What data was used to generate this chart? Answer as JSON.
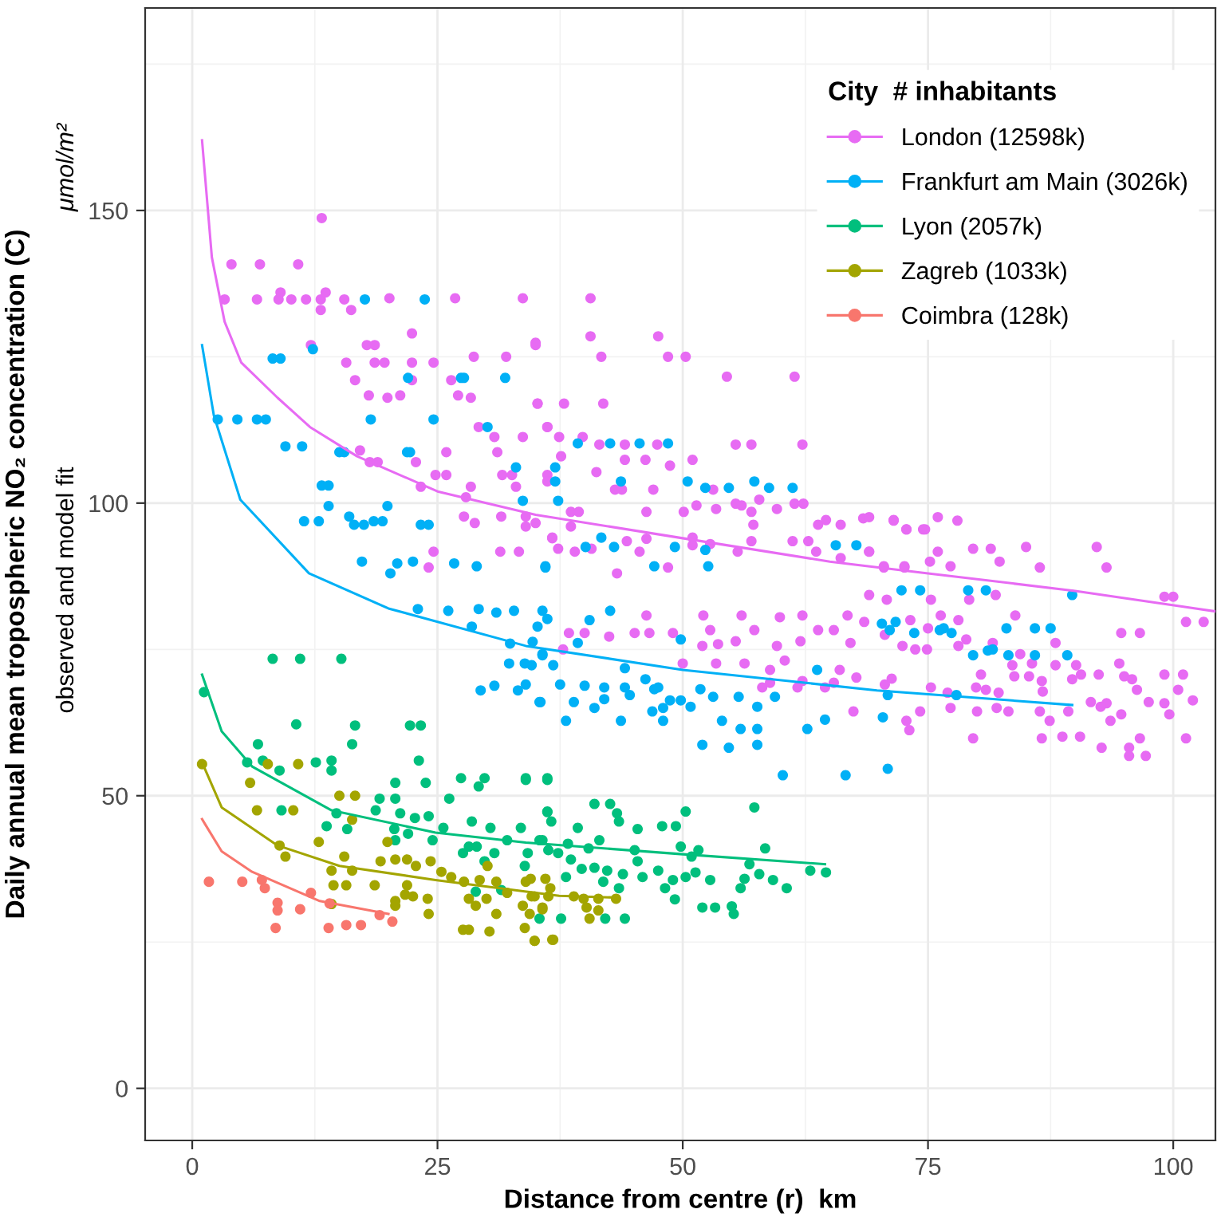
{
  "chart_data": {
    "type": "scatter",
    "xlabel": "Distance from centre (r)  km",
    "ylabel": "Daily annual mean tropospheric NO₂ concentration (C)",
    "annotations": [
      "μmol/m²",
      "observed and model fit"
    ],
    "legend_title": "City  # inhabitants",
    "xlim": [
      -4.8,
      104.3
    ],
    "ylim": [
      -8.9,
      184.6
    ],
    "xticks": [
      0,
      25,
      50,
      75,
      100
    ],
    "yticks": [
      0,
      50,
      100,
      150
    ],
    "grid": true,
    "legend": "top right",
    "marker": "circle",
    "series": [
      {
        "name": "London (12598k)",
        "color": "#e76bf3",
        "x": [
          13.2,
          4.0,
          6.9,
          10.8,
          3.3,
          6.6,
          8.8,
          10.1,
          11.6,
          13.1,
          15.5,
          20.1,
          26.8,
          33.7,
          9,
          13.6,
          13.1,
          16.2,
          22.4,
          12.1,
          17.8,
          18.6,
          35,
          15.7,
          18.6,
          19.6,
          22.4,
          24.6,
          28.7,
          32,
          16.6,
          22.4,
          26.4,
          18,
          19.9,
          21.2,
          27.1,
          28.4,
          35.2,
          29.2,
          30.8,
          33.7,
          36.2,
          17.1,
          25.9,
          31.1,
          18.1,
          18.9,
          22.8,
          24.8,
          25.9,
          31.6,
          32.6,
          36.2,
          23.3,
          28.4,
          33,
          27.9,
          27.7,
          28.8,
          31.5,
          34,
          34,
          35,
          36.7,
          24.6,
          31.4,
          33.3,
          24.1,
          40.6,
          40.6,
          47.5,
          35,
          41.7,
          48.5,
          50.3,
          54.5,
          61.4,
          35.2,
          37.9,
          41.9,
          36.2,
          37.4,
          39.8,
          41.5,
          44.1,
          47.4,
          55.4,
          57,
          62.2,
          37.6,
          44.1,
          46.2,
          51,
          48.7,
          41.2,
          36.2,
          43.1,
          43.8,
          47,
          53.1,
          57.8,
          55.4,
          56,
          61.4,
          62.3,
          51.4,
          50.1,
          38.6,
          39.4,
          46.3,
          53.4,
          57,
          59.6,
          63.8,
          64.6,
          66.1,
          68.4,
          71.5,
          72.8,
          74.5,
          57.2,
          36.7,
          37.3,
          38.6,
          39,
          40.7,
          44.3,
          45.6,
          46.3,
          51,
          51,
          52.8,
          55.6,
          57,
          61.2,
          62.8,
          63.6,
          66.1,
          69,
          70.5,
          72.6,
          76,
          43.3,
          48.5,
          69,
          71.5,
          72.8,
          74.7,
          76,
          78,
          69,
          79.6,
          81.4,
          85,
          92.2,
          93.2,
          75.2,
          77.3,
          82.3,
          86.4,
          70.5,
          72.6,
          99.1,
          100,
          69,
          70.8,
          75.3,
          79.2,
          81.9,
          68.5,
          73.2,
          76.3,
          78.1,
          83.9,
          101.3,
          103.1,
          70.6,
          72.4,
          75,
          73.7,
          74.9,
          78.1,
          78.9,
          81.6,
          94.7,
          96.6,
          88,
          84.4,
          83.6,
          85.6,
          88,
          90.1,
          94.5,
          80.4,
          83.8,
          85.3,
          86.6,
          89.7,
          90.6,
          92.4,
          95,
          95.8,
          99.1,
          101,
          70.6,
          71.3,
          75.3,
          79.9,
          80.9,
          82.2,
          86.7,
          96.3,
          100.5,
          77,
          91.6,
          93.2,
          97.5,
          102,
          74.2,
          77.3,
          80,
          82,
          83.2,
          86.4,
          89.3,
          92.6,
          99.1,
          94.7,
          99.6,
          72.8,
          87.4,
          93.6,
          73.1,
          79.6,
          86.6,
          88.7,
          90.5,
          96.6,
          101.3,
          92.7,
          95.5,
          95.5,
          97.2,
          46.3,
          38.4,
          40,
          42.5,
          45.1,
          46.6,
          49,
          52.1,
          52.8,
          56,
          57.3,
          59.9,
          62.2,
          63.8,
          66.8,
          52,
          53.6,
          55.4,
          59.6,
          62,
          65.4,
          67.1,
          50,
          53.4,
          56.3,
          60.4,
          58.9,
          58.1,
          58.9,
          61.7,
          62.2,
          65.4,
          64.5,
          66,
          67.7,
          67.4,
          37.8
        ],
        "values": [
          148.7,
          140.8,
          140.8,
          140.8,
          134.8,
          134.8,
          134.8,
          134.8,
          134.8,
          134.8,
          134.8,
          135,
          135,
          135,
          136,
          136,
          133,
          133,
          129,
          127,
          127,
          127,
          127.4,
          124,
          124,
          124,
          124,
          124,
          125,
          125,
          121,
          121,
          121,
          118.4,
          118,
          118.4,
          118.4,
          118,
          117,
          113,
          111.3,
          111.3,
          113,
          109,
          108.7,
          108.7,
          107,
          107,
          107,
          104.8,
          104.8,
          104.8,
          104.8,
          104.8,
          102.8,
          102.8,
          102.8,
          101,
          97.7,
          96.6,
          97.7,
          97.7,
          96,
          96.6,
          94,
          91.7,
          91.7,
          91.7,
          89,
          135,
          128.5,
          128.5,
          127,
          125,
          125,
          125,
          121.6,
          121.6,
          117,
          117,
          117,
          113,
          111.3,
          111.3,
          110,
          110,
          110,
          110,
          110,
          110,
          108,
          107.4,
          107.4,
          107.4,
          106.4,
          105.3,
          103.7,
          102.3,
          102.3,
          102.3,
          102.3,
          100.6,
          99.9,
          99.6,
          99.9,
          99.9,
          99.6,
          98.5,
          98.5,
          98.5,
          98.5,
          99,
          98.5,
          99,
          96.3,
          97.1,
          96.3,
          97.4,
          97.1,
          95.5,
          95.5,
          96.3,
          94.1,
          92.2,
          96,
          91.7,
          92.2,
          93.5,
          91.7,
          93.9,
          94.1,
          92.8,
          93,
          91.7,
          93.5,
          93.5,
          93.5,
          91.7,
          90.6,
          91.7,
          89,
          89,
          91.7,
          88,
          89,
          97.6,
          97,
          95.5,
          95.5,
          97.6,
          97,
          91.7,
          92.2,
          92.2,
          92.5,
          92.5,
          89,
          90,
          89.2,
          90,
          89,
          89.2,
          89.2,
          84,
          84,
          84.3,
          83.5,
          83.5,
          83.5,
          84.3,
          79.7,
          80,
          80.8,
          80,
          80.8,
          79.7,
          79.7,
          77.5,
          75.6,
          78.6,
          75,
          75,
          75.6,
          76.7,
          76.1,
          77.8,
          77.8,
          76.1,
          74.2,
          72.3,
          72.6,
          72.3,
          72.3,
          72.6,
          70.7,
          70.4,
          70.4,
          69.6,
          69.9,
          70.7,
          70.7,
          70.4,
          69.9,
          70.7,
          70.7,
          69,
          70,
          68.5,
          68.5,
          68.1,
          67.6,
          67.8,
          68.1,
          68.1,
          67.6,
          66,
          65.8,
          66,
          66.3,
          64.4,
          65,
          64.4,
          65,
          64.4,
          64.4,
          64.4,
          65.2,
          65.8,
          63.9,
          63.9,
          62.8,
          62.8,
          62.8,
          61.2,
          59.8,
          59.8,
          60.1,
          60.1,
          59.8,
          59.8,
          58.2,
          58.2,
          56.8,
          56.8,
          80.8,
          77.8,
          77.8,
          77.2,
          77.8,
          77.8,
          77.8,
          80.8,
          78.3,
          80.8,
          78.3,
          80.5,
          80.8,
          78.3,
          80.8,
          75.6,
          75.9,
          76.4,
          75.6,
          76.4,
          78.3,
          76.1,
          72.6,
          72.6,
          72.6,
          73.1,
          71.5,
          68.5,
          69.3,
          68.5,
          69.6,
          69.3,
          68.5,
          71.5,
          70.2,
          64.4,
          75
        ]
      },
      {
        "name": "Frankfurt am Main (3026k)",
        "color": "#00b0f6",
        "x": [
          17.6,
          23.7,
          8.2,
          9,
          12.3,
          22,
          27.4,
          27.7,
          31.9,
          2.6,
          4.6,
          6.6,
          7.5,
          18.2,
          24.6,
          30.1,
          9.5,
          11.2,
          15,
          15.5,
          21.9,
          22.2,
          33,
          37,
          37,
          13.2,
          13.9,
          33.7,
          13.9,
          19.9,
          11.4,
          12.9,
          16,
          16.5,
          17.5,
          18.5,
          19.4,
          23.3,
          24.1,
          17.3,
          20.9,
          22.5,
          26.7,
          29,
          36,
          20.2,
          39.3,
          42.6,
          45.6,
          48.5,
          37.3,
          43.7,
          50.5,
          52.3,
          54.7,
          57.3,
          58.8,
          61.2,
          41.7,
          40.1,
          43,
          49.2,
          52.3,
          36,
          47.1,
          52.6,
          65.6,
          67.7,
          72.3,
          74.2,
          79.1,
          80.9,
          89.7,
          70.3,
          71.7,
          71.1,
          73.6,
          76.2,
          76.6,
          77.4,
          83,
          85.9,
          87.5,
          79.6,
          81.1,
          81.6,
          83.2,
          85.9,
          89.2,
          70.9,
          77.9,
          70.4,
          70.9,
          35.7,
          36.2,
          40.5,
          42.6,
          39.3,
          49.8,
          34.6,
          36.8,
          35.7,
          34,
          37.5,
          40,
          42,
          44.1,
          46.2,
          47.5,
          44.1,
          35.5,
          38.9,
          41,
          42,
          44.6,
          47.1,
          46.9,
          48,
          48.7,
          49.8,
          50.8,
          51.8,
          53.1,
          55.7,
          57.6,
          59.4,
          63.7,
          64.5,
          62.7,
          38.1,
          43.7,
          48,
          54,
          55.9,
          57.6,
          57.6,
          52,
          54.7,
          60.2,
          66.6,
          23,
          26.1,
          29.2,
          31,
          32.8,
          28.5,
          35.2,
          32.4,
          34.7,
          32.3,
          33.9,
          29.4,
          30.8,
          33.2,
          35.4,
          35.7
        ],
        "values": [
          134.8,
          134.8,
          124.7,
          124.7,
          126.3,
          121.4,
          121.4,
          121.4,
          121.4,
          114.3,
          114.3,
          114.3,
          114.3,
          114.3,
          114.3,
          113,
          109.7,
          109.7,
          108.7,
          108.7,
          108.7,
          108.7,
          106.1,
          106.1,
          103.7,
          103,
          103,
          100.4,
          99.5,
          99.5,
          96.9,
          96.9,
          97.7,
          96.3,
          96.3,
          96.9,
          96.9,
          96.3,
          96.3,
          90,
          89.7,
          90,
          89.7,
          89.2,
          89.2,
          88,
          110.2,
          110.2,
          110.2,
          110.2,
          100.4,
          103.7,
          103.7,
          102.6,
          102.6,
          103.7,
          102.6,
          102.6,
          94.1,
          92.5,
          92.5,
          92.5,
          92,
          89,
          89.2,
          89.2,
          92.8,
          92.8,
          85.1,
          85.1,
          85.1,
          85.1,
          84.3,
          79.4,
          79.7,
          78.3,
          77.8,
          78.3,
          78.6,
          77.8,
          78.6,
          78.6,
          78.6,
          74,
          74.8,
          75,
          74,
          74,
          74,
          67.2,
          67.2,
          63.4,
          54.6,
          81.6,
          80.2,
          80,
          81.6,
          76.1,
          76.7,
          72.3,
          72.3,
          74.2,
          69,
          69,
          68.8,
          68.5,
          71.8,
          69.9,
          68.5,
          68.5,
          66,
          66,
          65,
          66.5,
          67.2,
          68.2,
          64.4,
          65,
          66.3,
          66.3,
          65.2,
          68.2,
          66.9,
          66.9,
          65.2,
          66.9,
          71.5,
          63,
          61.4,
          62.8,
          62.8,
          62.8,
          62.8,
          61.4,
          61.4,
          58.7,
          58.7,
          58.2,
          53.5,
          53.5,
          81.9,
          81.6,
          81.9,
          81.3,
          81.6,
          78.9,
          78.9,
          76,
          76.3,
          72.6,
          72.6,
          68,
          68.8,
          68,
          66,
          74
        ]
      },
      {
        "name": "Lyon (2057k)",
        "color": "#00bf7d",
        "x": [
          8.2,
          11,
          15.2,
          1.2,
          10.6,
          16.6,
          22.2,
          23.3,
          6.7,
          16.3,
          23.1,
          5.6,
          7.2,
          8.9,
          12.6,
          14.2,
          14.2,
          20.7,
          23.8,
          27.4,
          29.2,
          29.8,
          34,
          36.2,
          9.1,
          19.1,
          20.7,
          26.2,
          14.7,
          18.7,
          21.2,
          22.7,
          24.1,
          15.8,
          13.7,
          20.6,
          22,
          25.6,
          28.5,
          30.4,
          33.5,
          36.2,
          36.6,
          20.7,
          24.5,
          28.2,
          29,
          30.8,
          32.1,
          35.4,
          27.6,
          29.8,
          34.2,
          33.9,
          36.3,
          35.4,
          31.5,
          28.9,
          34,
          36.2,
          41,
          42.6,
          36.2,
          43.3,
          50.3,
          57.3,
          39.3,
          43.5,
          45.4,
          47.9,
          49.3,
          35.7,
          38.3,
          40.4,
          41.5,
          45.1,
          49.8,
          51.6,
          58.4,
          37.3,
          38.6,
          45.4,
          50.9,
          56.8,
          39.7,
          41,
          42.3,
          43.9,
          45.9,
          47.5,
          49,
          50.3,
          51.3,
          52.8,
          56.3,
          57.8,
          59.2,
          60.6,
          63,
          64.6,
          38.1,
          41.9,
          43.5,
          48.2,
          55.9,
          49.2,
          52,
          53.3,
          55,
          55.2,
          37.6,
          42.1,
          44.1
        ],
        "values": [
          73.4,
          73.4,
          73.4,
          67.7,
          62.2,
          62,
          62,
          62,
          58.8,
          58.8,
          56,
          55.7,
          56,
          54.3,
          55.7,
          56,
          54.3,
          52.2,
          52.2,
          53,
          51.6,
          53,
          53,
          53,
          47.5,
          49.5,
          49.5,
          49.5,
          47,
          47.5,
          47,
          46.2,
          46.5,
          44.3,
          44.8,
          44.3,
          43.5,
          44.5,
          45.6,
          44.5,
          44.5,
          47.3,
          45.6,
          42.4,
          42.4,
          41.3,
          41.3,
          40.2,
          42.4,
          42.4,
          40.2,
          38.8,
          40.2,
          38,
          40.7,
          29,
          33.9,
          33.6,
          52.7,
          52.7,
          48.6,
          48.6,
          47.2,
          47,
          47.3,
          48,
          44.5,
          45.6,
          44.3,
          44.8,
          44.8,
          42.4,
          41.8,
          41,
          42.4,
          40.7,
          41.3,
          40.7,
          41,
          40.2,
          39.1,
          38.8,
          39.6,
          38.3,
          37.5,
          37.7,
          37.2,
          36.6,
          36.1,
          37.2,
          35.6,
          36.1,
          36.9,
          35.6,
          35.8,
          36.6,
          35.6,
          34.2,
          37.2,
          36.9,
          36.1,
          35.3,
          34.2,
          34.2,
          34.2,
          32.3,
          30.9,
          30.9,
          31.1,
          29.8,
          29,
          29,
          29
        ]
      },
      {
        "name": "Zagreb (1033k)",
        "color": "#a3a500",
        "x": [
          1,
          7.7,
          10.8,
          5.9,
          6.6,
          10.3,
          15,
          16.6,
          16.3,
          12.9,
          8.9,
          9.5,
          19.9,
          15.5,
          14.2,
          16.3,
          19.2,
          20.7,
          21.9,
          22.8,
          24.3,
          14.4,
          15.7,
          18.6,
          21.9,
          25.4,
          26.4,
          27.7,
          29.3,
          30.1,
          31,
          34.5,
          21.7,
          20.7,
          22.5,
          24,
          14.2,
          20.7,
          28.2,
          30,
          32.1,
          33.7,
          34.9,
          36.3,
          24.1,
          28.9,
          31,
          27.6,
          28.2,
          30.3,
          33.9,
          35.7,
          34.9,
          36.8,
          34,
          36,
          34.6,
          36.5,
          38.9,
          39.9,
          41.4,
          43.2,
          40.2,
          41.4,
          40.5,
          34.4,
          35.7,
          34.9,
          36.7
        ],
        "values": [
          55.4,
          55.4,
          55.4,
          52.2,
          47.5,
          47.5,
          50,
          50,
          45.9,
          42.1,
          41.5,
          39.6,
          42.1,
          39.6,
          37.2,
          37.2,
          38.8,
          39.1,
          39.1,
          38,
          38.8,
          34.7,
          34.7,
          34.7,
          34.7,
          37,
          36.1,
          35.3,
          35.6,
          38,
          35.3,
          35.8,
          33.1,
          32,
          32.8,
          32.4,
          31.5,
          31.2,
          32.4,
          32.4,
          33.4,
          31.2,
          32.8,
          32.8,
          29.8,
          31.2,
          29.8,
          27.1,
          27.1,
          26.8,
          27.4,
          30.9,
          25.2,
          25.4,
          35.3,
          35.8,
          32.8,
          34.2,
          32.8,
          32.4,
          32.4,
          32.4,
          30.9,
          30.4,
          29,
          29.8,
          30.6,
          25.2,
          25.4
        ]
      },
      {
        "name": "Coimbra (128k)",
        "color": "#f8766d",
        "x": [
          1.7,
          5.1,
          7.1,
          7.4,
          8.7,
          8.7,
          11,
          12.1,
          14,
          8.5,
          13.9,
          15.7,
          17.2,
          19.1,
          20.4
        ],
        "values": [
          35.3,
          35.3,
          35.6,
          34.2,
          31.7,
          30.4,
          30.6,
          33.4,
          31.6,
          27.4,
          27.4,
          27.9,
          27.9,
          29.6,
          28.5
        ]
      },
      {
        "type": "line",
        "marker": "none",
        "color": "#e76bf3",
        "x": [
          1,
          2,
          3.3,
          5,
          8.7,
          12,
          16.8,
          25,
          35,
          50,
          65,
          75,
          90,
          104.3
        ],
        "values": [
          162,
          142,
          131,
          124,
          118,
          113,
          108,
          102,
          98,
          94,
          90,
          88,
          85,
          81.5
        ]
      },
      {
        "type": "line",
        "marker": "none",
        "color": "#00b0f6",
        "x": [
          1,
          2.2,
          4.9,
          11.9,
          20,
          34,
          50,
          69.8,
          89.7
        ],
        "values": [
          127,
          115,
          100.6,
          88,
          82,
          75.6,
          71.5,
          68,
          65.5
        ]
      },
      {
        "type": "line",
        "marker": "none",
        "color": "#00bf7d",
        "x": [
          1,
          3,
          6.1,
          14.2,
          24.8,
          34,
          50,
          64.5
        ],
        "values": [
          70.7,
          61,
          55,
          47.5,
          43.7,
          42,
          40,
          38.3
        ]
      },
      {
        "type": "line",
        "marker": "none",
        "color": "#a3a500",
        "x": [
          1,
          3,
          8.7,
          15,
          24.8,
          37.4,
          43.3
        ],
        "values": [
          55.7,
          48,
          41.5,
          38,
          35.6,
          32.9,
          32.6
        ]
      },
      {
        "type": "line",
        "marker": "none",
        "color": "#f8766d",
        "x": [
          1,
          3,
          6.1,
          13,
          20
        ],
        "values": [
          46,
          40.5,
          37,
          32,
          29.8
        ]
      }
    ]
  }
}
